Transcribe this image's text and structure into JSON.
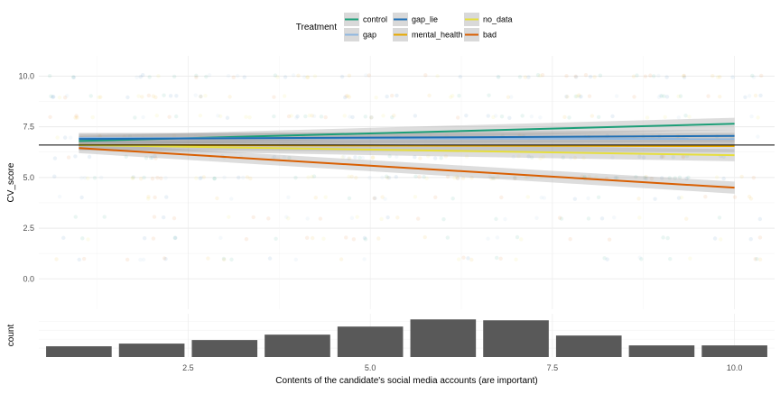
{
  "chart_data": {
    "type": "line",
    "title": "",
    "legend": {
      "title": "Treatment",
      "placement": "top",
      "entries": [
        "control",
        "gap",
        "gap_lie",
        "mental_health",
        "no_data",
        "bad"
      ]
    },
    "main_panel": {
      "ylabel": "CV_score",
      "ylim": [
        -1.5,
        11
      ],
      "y_ticks": [
        "0.0",
        "2.5",
        "5.0",
        "7.5",
        "10.0"
      ],
      "reference_hline": 6.6,
      "grid": true,
      "jitter_points": {
        "x": [
          1,
          2,
          3,
          4,
          5,
          6,
          7,
          8,
          9,
          10
        ],
        "y": [
          1,
          2,
          3,
          4,
          5,
          6,
          7,
          8,
          9,
          10
        ]
      },
      "series": [
        {
          "name": "control",
          "color": "#1b9e77",
          "x": [
            1,
            10
          ],
          "y": [
            6.8,
            7.65
          ],
          "ci_low": [
            6.55,
            7.35
          ],
          "ci_high": [
            7.05,
            7.95
          ]
        },
        {
          "name": "gap",
          "color": "#8fb7e0",
          "x": [
            1,
            10
          ],
          "y": [
            6.95,
            6.9
          ],
          "ci_low": [
            6.7,
            6.6
          ],
          "ci_high": [
            7.2,
            7.2
          ]
        },
        {
          "name": "gap_lie",
          "color": "#1f6fb5",
          "x": [
            1,
            10
          ],
          "y": [
            6.9,
            7.05
          ],
          "ci_low": [
            6.65,
            6.75
          ],
          "ci_high": [
            7.15,
            7.35
          ]
        },
        {
          "name": "mental_health",
          "color": "#e6a800",
          "x": [
            1,
            10
          ],
          "y": [
            6.6,
            6.55
          ],
          "ci_low": [
            6.35,
            6.25
          ],
          "ci_high": [
            6.85,
            6.85
          ]
        },
        {
          "name": "no_data",
          "color": "#e6de3c",
          "x": [
            1,
            10
          ],
          "y": [
            6.6,
            6.1
          ],
          "ci_low": [
            6.35,
            5.8
          ],
          "ci_high": [
            6.85,
            6.4
          ]
        },
        {
          "name": "bad",
          "color": "#d95f02",
          "x": [
            1,
            10
          ],
          "y": [
            6.45,
            4.5
          ],
          "ci_low": [
            6.2,
            4.2
          ],
          "ci_high": [
            6.7,
            4.8
          ]
        }
      ]
    },
    "histogram_panel": {
      "ylabel": "count",
      "x": [
        1,
        2,
        3,
        4,
        5,
        6,
        7,
        8,
        9,
        10
      ],
      "values": [
        12,
        15,
        19,
        25,
        34,
        42,
        41,
        24,
        13,
        13
      ],
      "color": "#595959"
    },
    "x_axis": {
      "xlabel": "Contents of the candidate's social media accounts (are important)",
      "xlim": [
        0.45,
        10.55
      ],
      "x_ticks": [
        2.5,
        5.0,
        7.5,
        10.0
      ],
      "x_tick_labels": [
        "2.5",
        "5.0",
        "7.5",
        "10.0"
      ]
    }
  }
}
